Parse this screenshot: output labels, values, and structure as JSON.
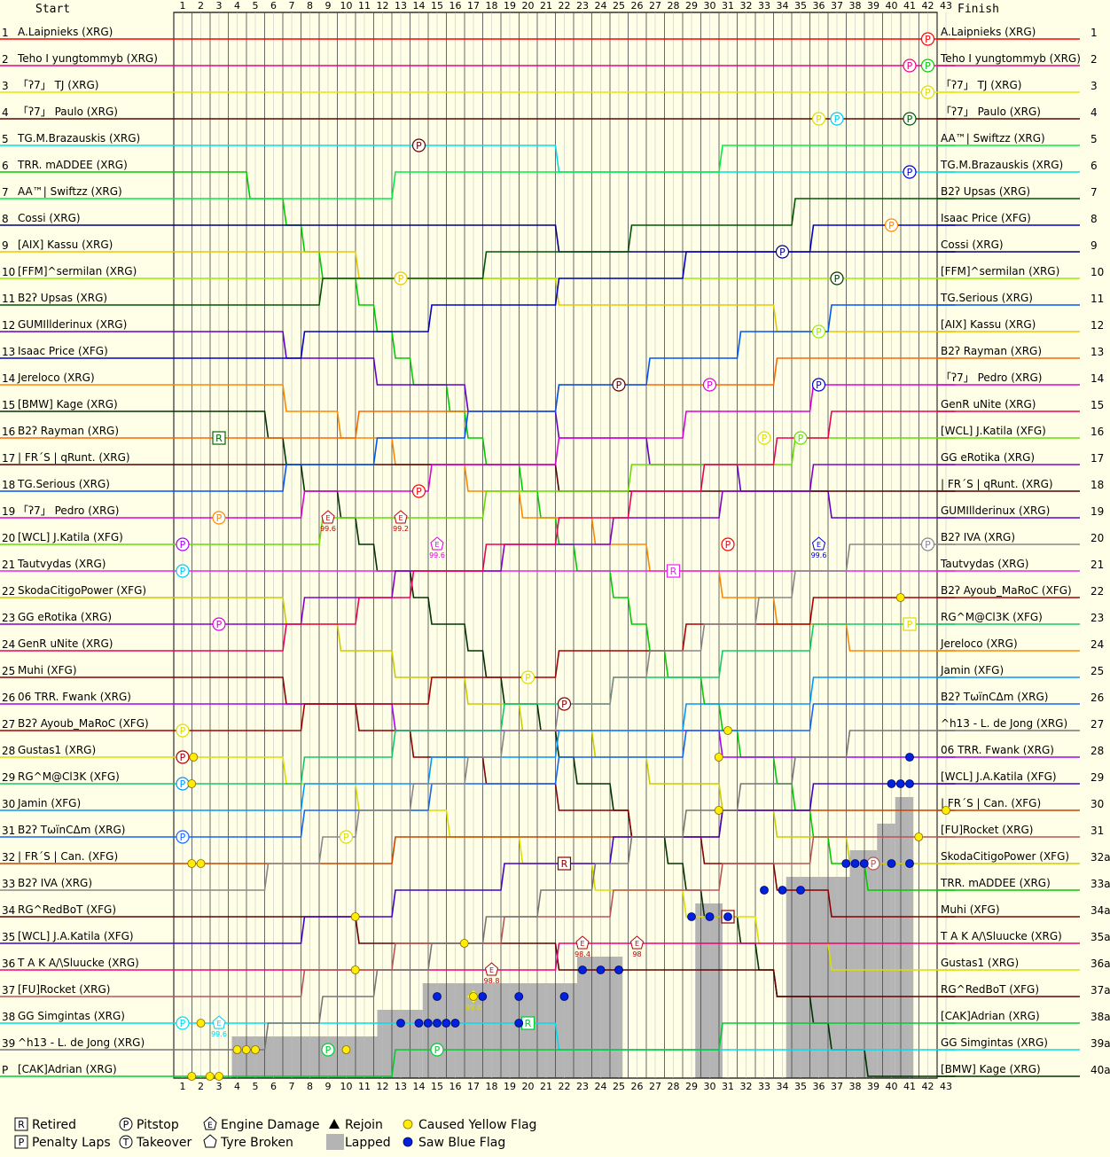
{
  "chart_data": {
    "type": "line",
    "start_label": "Start",
    "finish_label": "Finish",
    "laps": [
      1,
      2,
      3,
      4,
      5,
      6,
      7,
      8,
      9,
      10,
      11,
      12,
      13,
      14,
      15,
      16,
      17,
      18,
      19,
      20,
      21,
      22,
      23,
      24,
      25,
      26,
      27,
      28,
      29,
      30,
      31,
      32,
      33,
      34,
      35,
      36,
      37,
      38,
      39,
      40,
      41,
      42,
      43
    ],
    "position_labels": [
      "1",
      "2",
      "3",
      "4",
      "5",
      "6",
      "7",
      "8",
      "9",
      "10",
      "11",
      "12",
      "13",
      "14",
      "15",
      "16",
      "17",
      "18",
      "19",
      "20",
      "21",
      "22",
      "23",
      "24",
      "25",
      "26",
      "27",
      "28",
      "29",
      "30",
      "31",
      "32",
      "33",
      "34",
      "35",
      "36",
      "37",
      "38",
      "39",
      "P"
    ],
    "right_position_labels": [
      "1",
      "2",
      "3",
      "4",
      "5",
      "6",
      "7",
      "8",
      "9",
      "10",
      "11",
      "12",
      "13",
      "14",
      "15",
      "16",
      "17",
      "18",
      "19",
      "20",
      "21",
      "22",
      "23",
      "24",
      "25",
      "26",
      "27",
      "28",
      "29",
      "30",
      "31",
      "32a",
      "33a",
      "34a",
      "35a",
      "36a",
      "37a",
      "38a",
      "39a",
      "40a"
    ],
    "start_grid": [
      {
        "name": "A.Laipnieks (XRG)",
        "color": "#ff0000"
      },
      {
        "name": "Teho I yungtommyb (XRG)",
        "color": "#ee0088"
      },
      {
        "name": "「ʔ7」 TJ (XRG)",
        "color": "#e8e800"
      },
      {
        "name": "「ʔ7」 Paulo (XRG)",
        "color": "#660000"
      },
      {
        "name": "TG.M.Brazauskis (XRG)",
        "color": "#00e0e0"
      },
      {
        "name": "TRR. mADDEE (XRG)",
        "color": "#00cc00"
      },
      {
        "name": "AA™| Swiftzz (XRG)",
        "color": "#00ee44"
      },
      {
        "name": "Cossi (XRG)",
        "color": "#000080"
      },
      {
        "name": "[AIX] Kassu (XRG)",
        "color": "#e8c800"
      },
      {
        "name": "[FFM]^sermilan (XRG)",
        "color": "#99ee00"
      },
      {
        "name": "B2ʔ Upsas (XRG)",
        "color": "#005500"
      },
      {
        "name": "GUMIllderinux (XRG)",
        "color": "#6600cc"
      },
      {
        "name": "Isaac Price (XFG)",
        "color": "#0000cc"
      },
      {
        "name": "Jereloco (XRG)",
        "color": "#ff8800"
      },
      {
        "name": "[BMW] Kage (XRG)",
        "color": "#003300"
      },
      {
        "name": "B2ʔ Rayman (XRG)",
        "color": "#ff6600"
      },
      {
        "name": "| FR´S | qRunt. (XRG)",
        "color": "#550000"
      },
      {
        "name": "TG.Serious (XRG)",
        "color": "#0055ff"
      },
      {
        "name": "「ʔ7」 Pedro (XRG)",
        "color": "#dd00dd"
      },
      {
        "name": "[WCL] J.Katila (XFG)",
        "color": "#66dd00"
      },
      {
        "name": "Tautvydas (XRG)",
        "color": "#ee22ee"
      },
      {
        "name": "SkodaCitigoPower (XFG)",
        "color": "#cccc00"
      },
      {
        "name": "GG eRotika (XRG)",
        "color": "#8800cc"
      },
      {
        "name": "GenR uNite (XRG)",
        "color": "#ee0055"
      },
      {
        "name": "Muhi (XFG)",
        "color": "#880000"
      },
      {
        "name": "06 TRR. Fwank (XRG)",
        "color": "#aa00ff"
      },
      {
        "name": "B2ʔ Ayoub_MaRoC (XFG)",
        "color": "#aa0000"
      },
      {
        "name": "Gustas1 (XRG)",
        "color": "#dddd00"
      },
      {
        "name": "RG^M@Cl3K (XFG)",
        "color": "#11cc66"
      },
      {
        "name": "Jamin (XFG)",
        "color": "#0099ff"
      },
      {
        "name": "B2ʔ TωïnCΔm (XRG)",
        "color": "#1166ff"
      },
      {
        "name": "| FR´S | Can. (XFG)",
        "color": "#cc4400"
      },
      {
        "name": "B2ʔ IVA (XRG)",
        "color": "#888888"
      },
      {
        "name": "RG^RedBoT (XFG)",
        "color": "#660000"
      },
      {
        "name": "[WCL] J.A.Katila (XFG)",
        "color": "#4400cc"
      },
      {
        "name": "T A K A/\\Sluucke (XRG)",
        "color": "#ee0077"
      },
      {
        "name": "[FU]Rocket (XRG)",
        "color": "#bb5555"
      },
      {
        "name": "GG Simgintas (XRG)",
        "color": "#00ddee"
      },
      {
        "name": "^h13 - L. de Jong (XRG)",
        "color": "#777777"
      },
      {
        "name": "[CAK]Adrian (XRG)",
        "color": "#00cc33"
      }
    ],
    "finish_order": [
      {
        "name": "A.Laipnieks (XRG)",
        "color": "#ff0000"
      },
      {
        "name": "Teho I yungtommyb (XRG)",
        "color": "#ee0088"
      },
      {
        "name": "「ʔ7」 TJ (XRG)",
        "color": "#e8e800"
      },
      {
        "name": "「ʔ7」 Paulo (XRG)",
        "color": "#660000"
      },
      {
        "name": "AA™| Swiftzz (XRG)",
        "color": "#00ee44"
      },
      {
        "name": "TG.M.Brazauskis (XRG)",
        "color": "#00e0e0"
      },
      {
        "name": "B2ʔ Upsas (XRG)",
        "color": "#005500"
      },
      {
        "name": "Isaac Price (XFG)",
        "color": "#0000cc"
      },
      {
        "name": "Cossi (XRG)",
        "color": "#000080"
      },
      {
        "name": "[FFM]^sermilan (XRG)",
        "color": "#99ee00"
      },
      {
        "name": "TG.Serious (XRG)",
        "color": "#0055ff"
      },
      {
        "name": "[AIX] Kassu (XRG)",
        "color": "#e8c800"
      },
      {
        "name": "B2ʔ Rayman (XRG)",
        "color": "#ff6600"
      },
      {
        "name": "「ʔ7」 Pedro (XRG)",
        "color": "#dd00dd"
      },
      {
        "name": "GenR uNite (XRG)",
        "color": "#ee0055"
      },
      {
        "name": "[WCL] J.Katila (XFG)",
        "color": "#66dd00"
      },
      {
        "name": "GG eRotika (XRG)",
        "color": "#8800cc"
      },
      {
        "name": "| FR´S | qRunt. (XRG)",
        "color": "#550000"
      },
      {
        "name": "GUMIllderinux (XRG)",
        "color": "#6600cc"
      },
      {
        "name": "B2ʔ IVA (XRG)",
        "color": "#888888"
      },
      {
        "name": "Tautvydas (XRG)",
        "color": "#ee22ee"
      },
      {
        "name": "B2ʔ Ayoub_MaRoC (XFG)",
        "color": "#aa0000"
      },
      {
        "name": "RG^M@Cl3K (XFG)",
        "color": "#11cc66"
      },
      {
        "name": "Jereloco (XRG)",
        "color": "#ff8800"
      },
      {
        "name": "Jamin (XFG)",
        "color": "#0099ff"
      },
      {
        "name": "B2ʔ TωïnCΔm (XRG)",
        "color": "#1166ff"
      },
      {
        "name": "^h13 - L. de Jong (XRG)",
        "color": "#777777"
      },
      {
        "name": "06 TRR. Fwank (XRG)",
        "color": "#aa00ff"
      },
      {
        "name": "[WCL] J.A.Katila (XFG)",
        "color": "#4400cc"
      },
      {
        "name": "| FR´S | Can. (XFG)",
        "color": "#cc4400"
      },
      {
        "name": "[FU]Rocket (XRG)",
        "color": "#bb5555"
      },
      {
        "name": "SkodaCitigoPower (XFG)",
        "color": "#cccc00"
      },
      {
        "name": "TRR. mADDEE (XRG)",
        "color": "#00cc00"
      },
      {
        "name": "Muhi (XFG)",
        "color": "#880000"
      },
      {
        "name": "T A K A/\\Sluucke (XRG)",
        "color": "#ee0077"
      },
      {
        "name": "Gustas1 (XRG)",
        "color": "#dddd00"
      },
      {
        "name": "RG^RedBoT (XFG)",
        "color": "#660000"
      },
      {
        "name": "[CAK]Adrian (XRG)",
        "color": "#00cc33"
      },
      {
        "name": "GG Simgintas (XRG)",
        "color": "#00ddee"
      },
      {
        "name": "[BMW] Kage (XRG)",
        "color": "#003300"
      }
    ],
    "legend": [
      {
        "symbol": "R",
        "label": "Retired"
      },
      {
        "symbol": "P",
        "label": "Penalty Laps"
      },
      {
        "symbol": "P",
        "label": "Pitstop"
      },
      {
        "symbol": "T",
        "label": "Takeover"
      },
      {
        "symbol": "E",
        "label": "Engine Damage"
      },
      {
        "symbol": "tyre",
        "label": "Tyre Broken"
      },
      {
        "symbol": "triangle",
        "label": "Rejoin"
      },
      {
        "symbol": "lapped",
        "label": "Lapped"
      },
      {
        "symbol": "yellow-dot",
        "label": "Caused Yellow Flag"
      },
      {
        "symbol": "blue-dot",
        "label": "Saw Blue Flag"
      }
    ],
    "pitstops": [
      {
        "lap": 42,
        "position": 1,
        "color": "#ff0000"
      },
      {
        "lap": 41,
        "position": 2,
        "color": "#ee0088"
      },
      {
        "lap": 42,
        "position": 2,
        "color": "#00cc00"
      },
      {
        "lap": 14,
        "position": 5,
        "color": "#660000"
      },
      {
        "lap": 36,
        "position": 4,
        "color": "#dddd00"
      },
      {
        "lap": 37,
        "position": 4,
        "color": "#00ccee"
      },
      {
        "lap": 41,
        "position": 4,
        "color": "#005500"
      },
      {
        "lap": 41,
        "position": 6,
        "color": "#0000cc"
      },
      {
        "lap": 40,
        "position": 8,
        "color": "#ff8800"
      },
      {
        "lap": 34,
        "position": 9,
        "color": "#000080"
      },
      {
        "lap": 37,
        "position": 10,
        "color": "#003300"
      },
      {
        "lap": 13,
        "position": 10,
        "color": "#e8c800"
      },
      {
        "lap": 36,
        "position": 12,
        "color": "#99ee00"
      },
      {
        "lap": 25,
        "position": 14,
        "color": "#550000"
      },
      {
        "lap": 30,
        "position": 14,
        "color": "#dd00dd"
      },
      {
        "lap": 36,
        "position": 14,
        "color": "#0000cc"
      },
      {
        "lap": 33,
        "position": 16,
        "color": "#dddd00"
      },
      {
        "lap": 35,
        "position": 16,
        "color": "#66dd00"
      },
      {
        "lap": 14,
        "position": 18,
        "color": "#ff0000"
      },
      {
        "lap": 3,
        "position": 19,
        "color": "#ff8800"
      },
      {
        "lap": 1,
        "position": 20,
        "color": "#aa00ff"
      },
      {
        "lap": 1,
        "position": 21,
        "color": "#00ccee"
      },
      {
        "lap": 31,
        "position": 20,
        "color": "#ff0000"
      },
      {
        "lap": 42,
        "position": 20,
        "color": "#888888"
      },
      {
        "lap": 3,
        "position": 23,
        "color": "#dd00dd"
      },
      {
        "lap": 20,
        "position": 25,
        "color": "#dddd00"
      },
      {
        "lap": 22,
        "position": 26,
        "color": "#880000"
      },
      {
        "lap": 1,
        "position": 27,
        "color": "#dddd00"
      },
      {
        "lap": 1,
        "position": 28,
        "color": "#aa0000"
      },
      {
        "lap": 1,
        "position": 29,
        "color": "#0099ff"
      },
      {
        "lap": 1,
        "position": 31,
        "color": "#1166ff"
      },
      {
        "lap": 10,
        "position": 31,
        "color": "#dddd00"
      },
      {
        "lap": 39,
        "position": 32,
        "color": "#bb5555"
      },
      {
        "lap": 1,
        "position": 38,
        "color": "#00ddee"
      },
      {
        "lap": 9,
        "position": 39,
        "color": "#00cc33"
      },
      {
        "lap": 15,
        "position": 39,
        "color": "#00cc33"
      },
      {
        "lap": 42,
        "position": 3,
        "color": "#dddd00"
      }
    ],
    "retired": [
      {
        "lap": 3,
        "position": 16,
        "color": "#006600"
      },
      {
        "lap": 28,
        "position": 21,
        "color": "#ee22ee"
      },
      {
        "lap": 22,
        "position": 32,
        "color": "#880000"
      },
      {
        "lap": 31,
        "position": 34,
        "color": "#880000"
      },
      {
        "lap": 20,
        "position": 38,
        "color": "#00cc33"
      }
    ],
    "penalty_laps": [
      {
        "lap": 41,
        "position": 23,
        "color": "#dddd00"
      }
    ],
    "engine_damage": [
      {
        "lap": 9,
        "position": 19,
        "color": "#bb0000",
        "label": "99.6"
      },
      {
        "lap": 13,
        "position": 19,
        "color": "#bb0000",
        "label": "99.2"
      },
      {
        "lap": 15,
        "position": 20,
        "color": "#dd00dd",
        "label": "99.6"
      },
      {
        "lap": 36,
        "position": 20,
        "color": "#0000cc",
        "label": "99.6"
      },
      {
        "lap": 18,
        "position": 36,
        "color": "#bb0000",
        "label": "98.8"
      },
      {
        "lap": 23,
        "position": 35,
        "color": "#bb0000",
        "label": "98.4"
      },
      {
        "lap": 26,
        "position": 35,
        "color": "#bb0000",
        "label": "98"
      },
      {
        "lap": 3,
        "position": 38,
        "color": "#00ccee",
        "label": "99.6"
      }
    ],
    "tyre_broken": [
      {
        "lap": 17,
        "position": 37,
        "color": "#dddd00",
        "label": "99.8"
      }
    ],
    "yellow_dots": [
      {
        "lap": 1.5,
        "position": 29
      },
      {
        "lap": 1.5,
        "position": 32
      },
      {
        "lap": 2,
        "position": 32
      },
      {
        "lap": 1.6,
        "position": 28
      },
      {
        "lap": 2,
        "position": 38
      },
      {
        "lap": 1.5,
        "position": 40
      },
      {
        "lap": 2.5,
        "position": 40
      },
      {
        "lap": 3,
        "position": 40
      },
      {
        "lap": 4,
        "position": 39
      },
      {
        "lap": 4.5,
        "position": 39
      },
      {
        "lap": 5,
        "position": 39
      },
      {
        "lap": 10,
        "position": 39
      },
      {
        "lap": 10.5,
        "position": 34
      },
      {
        "lap": 10.5,
        "position": 36
      },
      {
        "lap": 16.5,
        "position": 35
      },
      {
        "lap": 17,
        "position": 37
      },
      {
        "lap": 16,
        "position": 38
      },
      {
        "lap": 25,
        "position": 36
      },
      {
        "lap": 31,
        "position": 27
      },
      {
        "lap": 30.5,
        "position": 28
      },
      {
        "lap": 30.5,
        "position": 30
      },
      {
        "lap": 41.5,
        "position": 31
      },
      {
        "lap": 40.5,
        "position": 22
      },
      {
        "lap": 43,
        "position": 30
      }
    ],
    "blue_dots": [
      {
        "lap": 13,
        "position": 38
      },
      {
        "lap": 14,
        "position": 38
      },
      {
        "lap": 14.5,
        "position": 38
      },
      {
        "lap": 15,
        "position": 38
      },
      {
        "lap": 15.5,
        "position": 38
      },
      {
        "lap": 16,
        "position": 38
      },
      {
        "lap": 15,
        "position": 37
      },
      {
        "lap": 17.5,
        "position": 37
      },
      {
        "lap": 19.5,
        "position": 37
      },
      {
        "lap": 22,
        "position": 37
      },
      {
        "lap": 23,
        "position": 36
      },
      {
        "lap": 24,
        "position": 36
      },
      {
        "lap": 25,
        "position": 36
      },
      {
        "lap": 19.5,
        "position": 38
      },
      {
        "lap": 29,
        "position": 34
      },
      {
        "lap": 30,
        "position": 34
      },
      {
        "lap": 31,
        "position": 34
      },
      {
        "lap": 33,
        "position": 33
      },
      {
        "lap": 34,
        "position": 33
      },
      {
        "lap": 35,
        "position": 33
      },
      {
        "lap": 37.5,
        "position": 32
      },
      {
        "lap": 38,
        "position": 32
      },
      {
        "lap": 38.5,
        "position": 32
      },
      {
        "lap": 40,
        "position": 32
      },
      {
        "lap": 41,
        "position": 32
      },
      {
        "lap": 40,
        "position": 29
      },
      {
        "lap": 40.5,
        "position": 29
      },
      {
        "lap": 41,
        "position": 29
      },
      {
        "lap": 41,
        "position": 28
      }
    ],
    "lapped_regions": [
      {
        "from_lap": 4,
        "to_lap": 12,
        "from_position": 39
      },
      {
        "from_lap": 12,
        "to_lap": 14.5,
        "from_position": 38
      },
      {
        "from_lap": 14.5,
        "to_lap": 22,
        "from_position": 37
      },
      {
        "from_lap": 22,
        "to_lap": 23,
        "from_position": 37
      },
      {
        "from_lap": 23,
        "to_lap": 25.5,
        "from_position": 36
      },
      {
        "from_lap": 29.5,
        "to_lap": 31,
        "from_position": 34
      },
      {
        "from_lap": 34.5,
        "to_lap": 38,
        "from_position": 33
      },
      {
        "from_lap": 38,
        "to_lap": 39.5,
        "from_position": 32
      },
      {
        "from_lap": 39.5,
        "to_lap": 40.5,
        "from_position": 31
      },
      {
        "from_lap": 40.5,
        "to_lap": 41.5,
        "from_position": 30
      }
    ]
  }
}
